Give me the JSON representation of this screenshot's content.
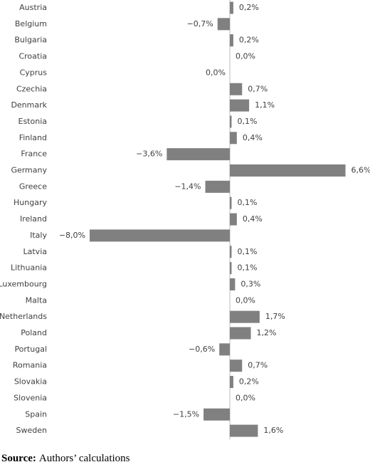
{
  "chart_data": {
    "type": "bar",
    "orientation": "horizontal",
    "categories": [
      "Austria",
      "Belgium",
      "Bulgaria",
      "Croatia",
      "Cyprus",
      "Czechia",
      "Denmark",
      "Estonia",
      "Finland",
      "France",
      "Germany",
      "Greece",
      "Hungary",
      "Ireland",
      "Italy",
      "Latvia",
      "Lithuania",
      "Luxembourg",
      "Malta",
      "Netherlands",
      "Poland",
      "Portugal",
      "Romania",
      "Slovakia",
      "Slovenia",
      "Spain",
      "Sweden"
    ],
    "values": [
      0.2,
      -0.7,
      0.2,
      0.0,
      0,
      0.7,
      1.1,
      0.1,
      0.4,
      -3.6,
      6.6,
      -1.4,
      0.1,
      0.4,
      -8.0,
      0.1,
      0.1,
      0.3,
      0.0,
      1.7,
      1.2,
      -0.6,
      0.7,
      0.2,
      0.0,
      -1.5,
      1.6
    ],
    "value_labels": [
      "0,2%",
      "−0,7%",
      "0,2%",
      "0,0%",
      "0,0%",
      "0,7%",
      "1,1%",
      "0,1%",
      "0,4%",
      "−3,6%",
      "6,6%",
      "−1,4%",
      "0,1%",
      "0,4%",
      "−8,0%",
      "0,1%",
      "0,1%",
      "0,3%",
      "0,0%",
      "1,7%",
      "1,2%",
      "−0,6%",
      "0,7%",
      "0,2%",
      "0,0%",
      "−1,5%",
      "1,6%"
    ],
    "color": "#808080",
    "xlim": [
      -8,
      8
    ],
    "source_label": "Source:",
    "source": "Authors’ calculations"
  }
}
